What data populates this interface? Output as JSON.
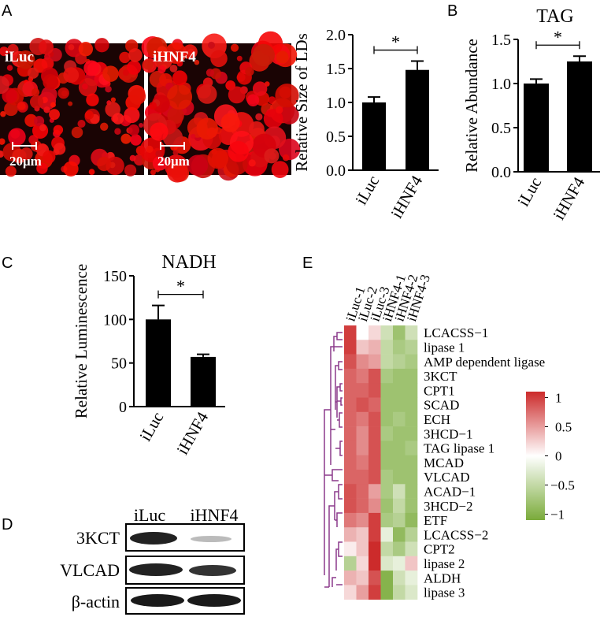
{
  "panel_labels": [
    "A",
    "B",
    "C",
    "D",
    "E"
  ],
  "micrographs": {
    "labels": [
      "iLuc",
      "iHNF4"
    ],
    "scale_bar": "20μm"
  },
  "chart_data": [
    {
      "type": "bar",
      "ylabel": "Relative Size of LDs",
      "categories": [
        "iLuc",
        "iHNF4"
      ],
      "values": [
        1.0,
        1.48
      ],
      "errors": [
        0.08,
        0.13
      ],
      "color": "#000000",
      "significance": "*",
      "ylim": [
        0,
        2.0
      ],
      "yticks": [
        {
          "value": 0,
          "label": "0.0"
        },
        {
          "value": 0.5,
          "label": "0.5"
        },
        {
          "value": 1.0,
          "label": "1.0"
        },
        {
          "value": 1.5,
          "label": "1.5"
        },
        {
          "value": 2.0,
          "label": "2.0"
        }
      ]
    },
    {
      "type": "bar",
      "title": "TAG",
      "ylabel": "Relative Abundance",
      "categories": [
        "iLuc",
        "iHNF4"
      ],
      "values": [
        1.0,
        1.25
      ],
      "errors": [
        0.05,
        0.06
      ],
      "color": "#000000",
      "significance": "*",
      "ylim": [
        0,
        1.5
      ],
      "yticks": [
        {
          "value": 0,
          "label": "0.0"
        },
        {
          "value": 0.5,
          "label": "0.5"
        },
        {
          "value": 1.0,
          "label": "1.0"
        },
        {
          "value": 1.5,
          "label": "1.5"
        }
      ]
    },
    {
      "type": "bar",
      "title": "NADH",
      "ylabel": "Relative Luminescence",
      "categories": [
        "iLuc",
        "iHNF4"
      ],
      "values": [
        100,
        57
      ],
      "errors": [
        16,
        3
      ],
      "color": "#000000",
      "significance": "*",
      "ylim": [
        0,
        150
      ],
      "yticks": [
        0,
        50,
        100,
        150
      ]
    },
    {
      "type": "heatmap",
      "columns": [
        "iLuc-1",
        "iLuc-2",
        "iLuc-3",
        "iHNF4-1",
        "iHNF4-2",
        "iHNF4-3"
      ],
      "rows": [
        "LCACSS−1",
        "lipase 1",
        "AMP dependent ligase",
        "3KCT",
        "CPT1",
        "SCAD",
        "ECH",
        "3HCD−1",
        "TAG lipase 1",
        "MCAD",
        "VLCAD",
        "ACAD−1",
        "3HCD−2",
        "ETF",
        "LCACSS−2",
        "CPT2",
        "lipase 2",
        "ALDH",
        "lipase 3"
      ],
      "values": [
        [
          1.0,
          0.0,
          0.2,
          -0.4,
          -0.8,
          -0.4
        ],
        [
          1.0,
          0.3,
          0.4,
          -0.5,
          -0.7,
          -0.6
        ],
        [
          0.9,
          0.6,
          0.5,
          -0.5,
          -0.6,
          -0.7
        ],
        [
          0.8,
          0.7,
          0.9,
          -0.7,
          -0.8,
          -0.8
        ],
        [
          0.8,
          0.8,
          0.9,
          -0.8,
          -0.8,
          -0.8
        ],
        [
          0.8,
          0.9,
          0.8,
          -0.8,
          -0.8,
          -0.8
        ],
        [
          0.8,
          0.7,
          0.9,
          -0.8,
          -0.7,
          -0.8
        ],
        [
          0.8,
          0.6,
          0.9,
          -0.7,
          -0.8,
          -0.8
        ],
        [
          0.8,
          0.6,
          0.9,
          -0.8,
          -0.8,
          -0.7
        ],
        [
          0.8,
          0.7,
          0.9,
          -0.8,
          -0.8,
          -0.8
        ],
        [
          0.8,
          0.8,
          0.9,
          -0.7,
          -0.8,
          -0.8
        ],
        [
          0.9,
          0.8,
          0.5,
          -0.7,
          -0.4,
          -0.8
        ],
        [
          0.9,
          0.8,
          0.6,
          -0.8,
          -0.5,
          -0.8
        ],
        [
          0.7,
          0.6,
          1.0,
          -0.7,
          -0.6,
          -0.9
        ],
        [
          0.4,
          0.3,
          1.0,
          -0.2,
          -0.9,
          -0.6
        ],
        [
          0.1,
          0.3,
          1.1,
          -0.5,
          -0.7,
          -0.4
        ],
        [
          -0.6,
          0.2,
          1.1,
          -0.3,
          -0.2,
          0.3
        ],
        [
          0.4,
          0.3,
          0.9,
          -1.0,
          -0.4,
          -0.2
        ],
        [
          0.2,
          0.5,
          1.0,
          -1.0,
          -0.5,
          -0.3
        ]
      ],
      "colors": [
        "#7aab3a",
        "#ffffff",
        "#cc2b2b"
      ],
      "clim": [
        -1.1,
        1.1
      ],
      "colorbar_ticks": [
        1,
        0.5,
        0,
        {
          "value": -0.5,
          "label": "−0.5"
        },
        {
          "value": -1,
          "label": "−1"
        }
      ]
    }
  ],
  "western_blot": {
    "lanes": [
      "iLuc",
      "iHNF4"
    ],
    "bands": [
      "3KCT",
      "VLCAD",
      "β-actin"
    ]
  }
}
